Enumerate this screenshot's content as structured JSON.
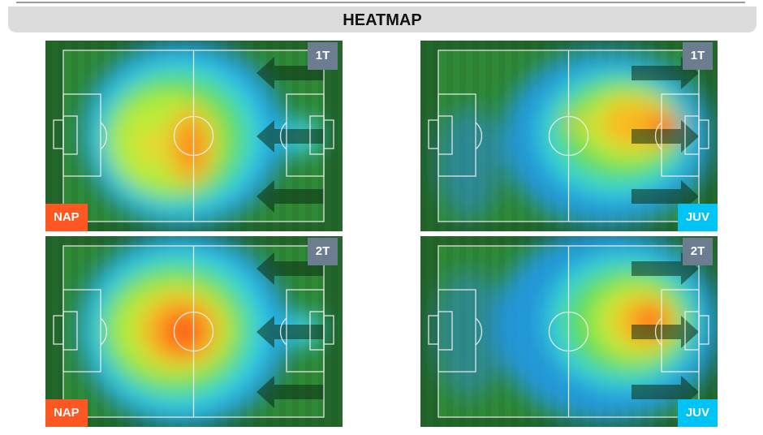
{
  "header": {
    "title": "HEATMAP"
  },
  "colors": {
    "nap": "#ff5722",
    "juv": "#00c4f5",
    "period_badge": "#6b7d8f",
    "pitch": "#2e7d32"
  },
  "panels": [
    {
      "period": "1T",
      "team": "NAP",
      "team_color": "#ff5722",
      "attack_direction": "left",
      "badge_side": "left"
    },
    {
      "period": "1T",
      "team": "JUV",
      "team_color": "#00c4f5",
      "attack_direction": "right",
      "badge_side": "right"
    },
    {
      "period": "2T",
      "team": "NAP",
      "team_color": "#ff5722",
      "attack_direction": "left",
      "badge_side": "left"
    },
    {
      "period": "2T",
      "team": "JUV",
      "team_color": "#00c4f5",
      "attack_direction": "right",
      "badge_side": "right"
    }
  ]
}
